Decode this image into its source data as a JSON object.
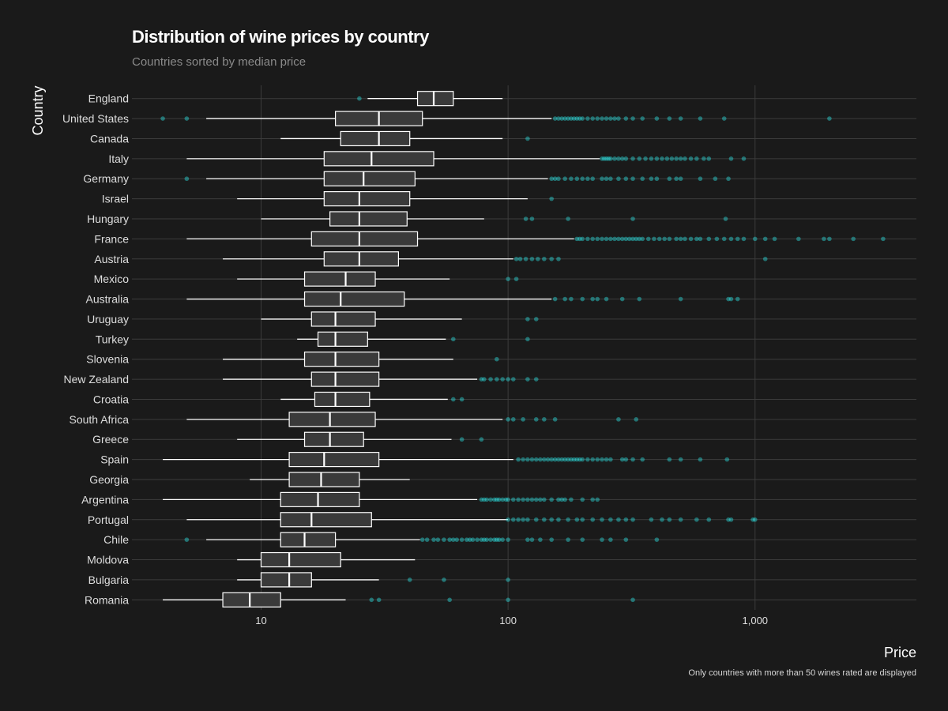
{
  "title": "Distribution of wine prices by country",
  "subtitle": "Countries sorted by median price",
  "caption": "Only countries with more than 50 wines rated are displayed",
  "colors": {
    "background": "#1a1a1a",
    "box_fill": "#3a3a3a",
    "box_stroke": "#ffffff",
    "outlier": "#2ef2f2",
    "grid": "#3c3c3c"
  },
  "chart_data": {
    "type": "boxplot",
    "title": "Distribution of wine prices by country",
    "subtitle": "Countries sorted by median price",
    "orientation": "horizontal",
    "xlabel": "Price",
    "ylabel": "Country",
    "x_scale": "log10",
    "xlim": [
      3,
      4500
    ],
    "x_ticks": [
      10,
      100,
      1000
    ],
    "x_tick_labels": [
      "10",
      "100",
      "1,000"
    ],
    "grid": true,
    "categories": [
      "England",
      "United States",
      "Canada",
      "Italy",
      "Germany",
      "Israel",
      "Hungary",
      "France",
      "Austria",
      "Mexico",
      "Australia",
      "Uruguay",
      "Turkey",
      "Slovenia",
      "New Zealand",
      "Croatia",
      "South Africa",
      "Greece",
      "Spain",
      "Georgia",
      "Argentina",
      "Portugal",
      "Chile",
      "Moldova",
      "Bulgaria",
      "Romania"
    ],
    "boxes": [
      {
        "country": "England",
        "whisker_low": 27,
        "q1": 43,
        "median": 50,
        "q3": 60,
        "whisker_high": 95,
        "outliers": [
          25
        ]
      },
      {
        "country": "United States",
        "whisker_low": 6,
        "q1": 20,
        "median": 30,
        "q3": 45,
        "whisker_high": 150,
        "outliers": [
          4,
          5,
          155,
          160,
          165,
          170,
          175,
          180,
          185,
          190,
          195,
          200,
          210,
          220,
          230,
          240,
          250,
          260,
          270,
          280,
          300,
          320,
          350,
          400,
          450,
          500,
          600,
          750,
          2000
        ]
      },
      {
        "country": "Canada",
        "whisker_low": 12,
        "q1": 21,
        "median": 30,
        "q3": 40,
        "whisker_high": 95,
        "outliers": [
          120
        ]
      },
      {
        "country": "Italy",
        "whisker_low": 5,
        "q1": 18,
        "median": 28,
        "q3": 50,
        "whisker_high": 235,
        "outliers": [
          240,
          245,
          250,
          255,
          260,
          270,
          280,
          290,
          300,
          320,
          340,
          360,
          380,
          400,
          420,
          440,
          460,
          480,
          500,
          520,
          550,
          580,
          620,
          650,
          800,
          900
        ]
      },
      {
        "country": "Germany",
        "whisker_low": 6,
        "q1": 18,
        "median": 26,
        "q3": 42,
        "whisker_high": 145,
        "outliers": [
          5,
          150,
          155,
          160,
          170,
          180,
          190,
          200,
          210,
          220,
          240,
          250,
          260,
          280,
          300,
          320,
          350,
          380,
          400,
          450,
          480,
          500,
          600,
          690,
          780
        ]
      },
      {
        "country": "Israel",
        "whisker_low": 8,
        "q1": 18,
        "median": 25,
        "q3": 40,
        "whisker_high": 120,
        "outliers": [
          150
        ]
      },
      {
        "country": "Hungary",
        "whisker_low": 10,
        "q1": 19,
        "median": 25,
        "q3": 39,
        "whisker_high": 80,
        "outliers": [
          118,
          125,
          175,
          320,
          760
        ]
      },
      {
        "country": "France",
        "whisker_low": 5,
        "q1": 16,
        "median": 25,
        "q3": 43,
        "whisker_high": 185,
        "outliers": [
          190,
          195,
          200,
          210,
          220,
          230,
          240,
          250,
          260,
          270,
          280,
          290,
          300,
          310,
          320,
          330,
          340,
          350,
          370,
          390,
          410,
          430,
          450,
          480,
          500,
          520,
          550,
          580,
          600,
          650,
          700,
          750,
          800,
          850,
          900,
          1000,
          1100,
          1200,
          1500,
          1900,
          2000,
          2500,
          3300
        ]
      },
      {
        "country": "Austria",
        "whisker_low": 7,
        "q1": 18,
        "median": 25,
        "q3": 36,
        "whisker_high": 105,
        "outliers": [
          108,
          112,
          118,
          125,
          132,
          140,
          150,
          160,
          1100
        ]
      },
      {
        "country": "Mexico",
        "whisker_low": 8,
        "q1": 15,
        "median": 22,
        "q3": 29,
        "whisker_high": 58,
        "outliers": [
          100,
          108
        ]
      },
      {
        "country": "Australia",
        "whisker_low": 5,
        "q1": 15,
        "median": 21,
        "q3": 38,
        "whisker_high": 150,
        "outliers": [
          155,
          170,
          180,
          200,
          220,
          230,
          250,
          290,
          340,
          500,
          780,
          800,
          850
        ]
      },
      {
        "country": "Uruguay",
        "whisker_low": 10,
        "q1": 16,
        "median": 20,
        "q3": 29,
        "whisker_high": 65,
        "outliers": [
          120,
          130
        ]
      },
      {
        "country": "Turkey",
        "whisker_low": 14,
        "q1": 17,
        "median": 20,
        "q3": 27,
        "whisker_high": 56,
        "outliers": [
          60,
          120
        ]
      },
      {
        "country": "Slovenia",
        "whisker_low": 7,
        "q1": 15,
        "median": 20,
        "q3": 30,
        "whisker_high": 60,
        "outliers": [
          90
        ]
      },
      {
        "country": "New Zealand",
        "whisker_low": 7,
        "q1": 16,
        "median": 20,
        "q3": 30,
        "whisker_high": 75,
        "outliers": [
          78,
          80,
          85,
          90,
          95,
          100,
          105,
          120,
          130
        ]
      },
      {
        "country": "Croatia",
        "whisker_low": 12,
        "q1": 16.5,
        "median": 20,
        "q3": 27.5,
        "whisker_high": 57,
        "outliers": [
          60,
          65
        ]
      },
      {
        "country": "South Africa",
        "whisker_low": 5,
        "q1": 13,
        "median": 19,
        "q3": 29,
        "whisker_high": 95,
        "outliers": [
          100,
          105,
          115,
          130,
          140,
          155,
          280,
          330
        ]
      },
      {
        "country": "Greece",
        "whisker_low": 8,
        "q1": 15,
        "median": 19,
        "q3": 26,
        "whisker_high": 59,
        "outliers": [
          65,
          78
        ]
      },
      {
        "country": "Spain",
        "whisker_low": 4,
        "q1": 13,
        "median": 18,
        "q3": 30,
        "whisker_high": 105,
        "outliers": [
          110,
          115,
          120,
          125,
          130,
          135,
          140,
          145,
          150,
          155,
          160,
          165,
          170,
          175,
          180,
          185,
          190,
          195,
          200,
          210,
          220,
          230,
          240,
          250,
          260,
          290,
          300,
          320,
          350,
          450,
          500,
          600,
          770
        ]
      },
      {
        "country": "Georgia",
        "whisker_low": 9,
        "q1": 13,
        "median": 17.5,
        "q3": 25,
        "whisker_high": 40,
        "outliers": []
      },
      {
        "country": "Argentina",
        "whisker_low": 4,
        "q1": 12,
        "median": 17,
        "q3": 25,
        "whisker_high": 75,
        "outliers": [
          78,
          80,
          82,
          85,
          88,
          90,
          92,
          95,
          98,
          100,
          105,
          110,
          115,
          120,
          125,
          130,
          135,
          140,
          150,
          160,
          165,
          170,
          180,
          200,
          220,
          230
        ]
      },
      {
        "country": "Portugal",
        "whisker_low": 5,
        "q1": 12,
        "median": 16,
        "q3": 28,
        "whisker_high": 100,
        "outliers": [
          100,
          105,
          110,
          115,
          120,
          130,
          140,
          150,
          160,
          175,
          190,
          200,
          220,
          240,
          260,
          280,
          300,
          320,
          380,
          420,
          450,
          500,
          580,
          650,
          780,
          800,
          980,
          1000
        ]
      },
      {
        "country": "Chile",
        "whisker_low": 6,
        "q1": 12,
        "median": 15,
        "q3": 20,
        "whisker_high": 44,
        "outliers": [
          5,
          45,
          47,
          50,
          52,
          55,
          58,
          60,
          62,
          65,
          68,
          70,
          72,
          75,
          78,
          80,
          82,
          85,
          88,
          90,
          92,
          95,
          100,
          120,
          125,
          135,
          150,
          175,
          200,
          240,
          260,
          300,
          400
        ]
      },
      {
        "country": "Moldova",
        "whisker_low": 8,
        "q1": 10,
        "median": 13,
        "q3": 21,
        "whisker_high": 42,
        "outliers": []
      },
      {
        "country": "Bulgaria",
        "whisker_low": 8,
        "q1": 10,
        "median": 13,
        "q3": 16,
        "whisker_high": 30,
        "outliers": [
          40,
          55,
          100
        ]
      },
      {
        "country": "Romania",
        "whisker_low": 4,
        "q1": 7,
        "median": 9,
        "q3": 12,
        "whisker_high": 22,
        "outliers": [
          28,
          30,
          58,
          100,
          320
        ]
      }
    ]
  }
}
